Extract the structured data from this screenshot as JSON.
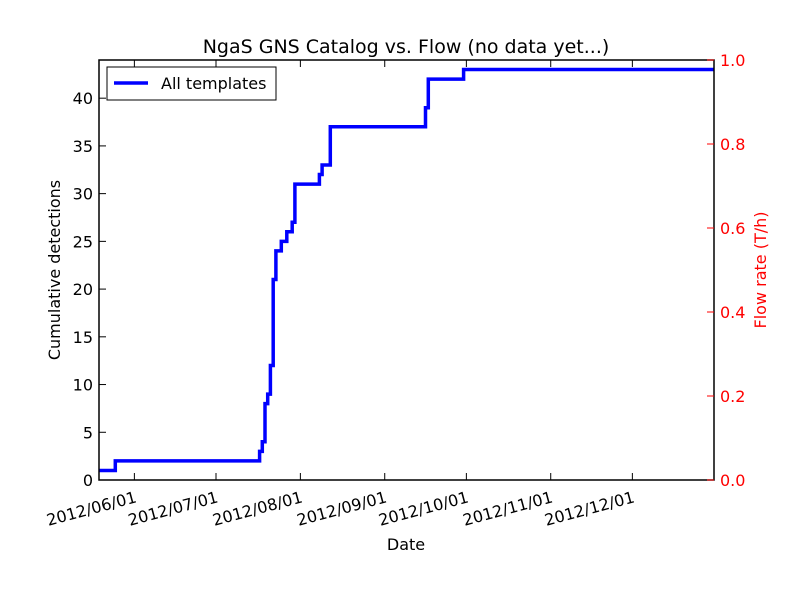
{
  "chart_data": {
    "type": "line",
    "title": "NgaS GNS Catalog vs. Flow (no data yet...)",
    "xlabel": "Date",
    "ylabel": "Cumulative detections",
    "ylabel_right": "Flow rate (T/h)",
    "xlim": [
      "2012-05-19",
      "2012-12-31"
    ],
    "ylim": [
      0,
      44
    ],
    "ylim_right": [
      0,
      1.0
    ],
    "x_ticks": [
      "2012/06/01",
      "2012/07/01",
      "2012/08/01",
      "2012/09/01",
      "2012/10/01",
      "2012/11/01",
      "2012/12/01"
    ],
    "x_tick_dates": [
      "2012-06-01",
      "2012-07-01",
      "2012-08-01",
      "2012-09-01",
      "2012-10-01",
      "2012-11-01",
      "2012-12-01"
    ],
    "y_ticks": [
      "0",
      "5",
      "10",
      "15",
      "20",
      "25",
      "30",
      "35",
      "40"
    ],
    "y_ticks_right": [
      "0.0",
      "0.2",
      "0.4",
      "0.6",
      "0.8",
      "1.0"
    ],
    "legend_position": "top-left",
    "grid": false,
    "colors": {
      "series": "#0000ff",
      "right_axis": "#ff0000"
    },
    "series": [
      {
        "name": "All templates",
        "x": [
          "2012-05-19",
          "2012-05-25",
          "2012-05-25",
          "2012-07-17",
          "2012-07-17",
          "2012-07-18",
          "2012-07-18",
          "2012-07-19",
          "2012-07-19",
          "2012-07-20",
          "2012-07-20",
          "2012-07-21",
          "2012-07-21",
          "2012-07-22",
          "2012-07-22",
          "2012-07-23",
          "2012-07-23",
          "2012-07-25",
          "2012-07-25",
          "2012-07-27",
          "2012-07-27",
          "2012-07-29",
          "2012-07-29",
          "2012-07-30",
          "2012-07-30",
          "2012-08-08",
          "2012-08-08",
          "2012-08-09",
          "2012-08-09",
          "2012-08-12",
          "2012-08-12",
          "2012-09-16",
          "2012-09-16",
          "2012-09-17",
          "2012-09-17",
          "2012-09-30",
          "2012-09-30",
          "2012-12-31"
        ],
        "y": [
          1,
          1,
          2,
          2,
          3,
          3,
          4,
          4,
          8,
          8,
          9,
          9,
          12,
          12,
          21,
          21,
          24,
          24,
          25,
          25,
          26,
          26,
          27,
          27,
          31,
          31,
          32,
          32,
          33,
          33,
          37,
          37,
          39,
          39,
          42,
          42,
          43,
          43
        ]
      }
    ]
  }
}
